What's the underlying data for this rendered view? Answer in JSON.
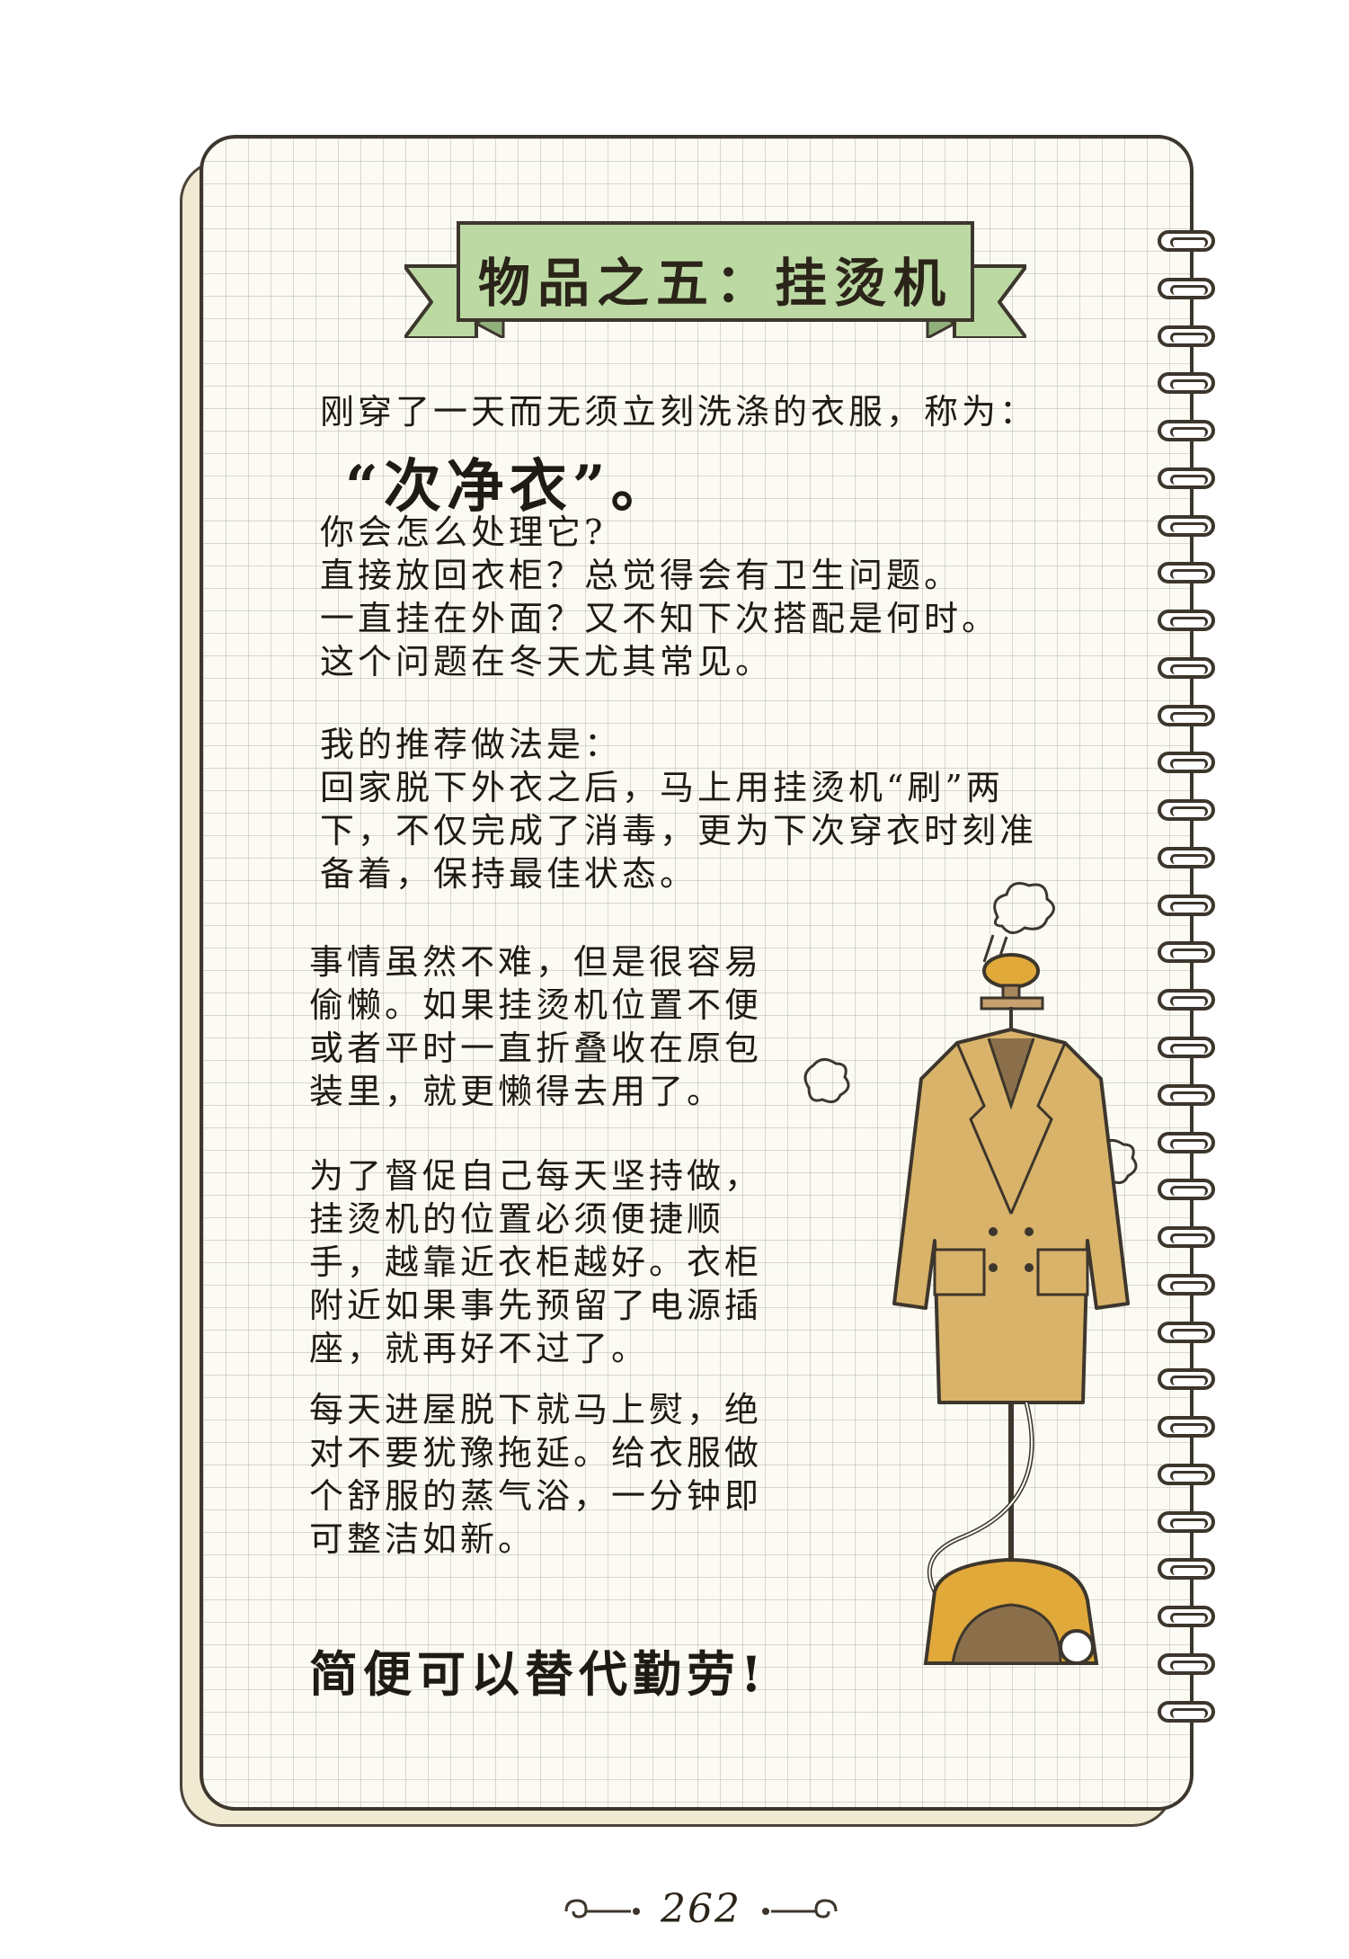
{
  "title": "物品之五：挂烫机",
  "intro": "刚穿了一天而无须立刻洗涤的衣服，称为：",
  "term": "“次净衣”。",
  "questions": "你会怎么处理它?\n直接放回衣柜？总觉得会有卫生问题。\n一直挂在外面？又不知下次搭配是何时。\n这个问题在冬天尤其常见。",
  "recommendation": "我的推荐做法是：\n回家脱下外衣之后，马上用挂烫机“刷”两\n下，不仅完成了消毒，更为下次穿衣时刻准\n备着，保持最佳状态。",
  "para_lazy": "事情虽然不难，但是很容易\n偷懒。如果挂烫机位置不便\n或者平时一直折叠收在原包\n装里，就更懒得去用了。",
  "para_position": "为了督促自己每天坚持做，\n挂烫机的位置必须便捷顺\n手，越靠近衣柜越好。衣柜\n附近如果事先预留了电源插\n座，就再好不过了。",
  "para_daily": "每天进屋脱下就马上熨，绝\n对不要犹豫拖延。给衣服做\n个舒服的蒸气浴，一分钟即\n可整洁如新。",
  "slogan": "简便可以替代勤劳!",
  "page_number": "262",
  "colors": {
    "ribbon": "#bcd9a4",
    "coat": "#d9b36a",
    "steamer_base": "#e0a93a",
    "outline": "#3d362c"
  }
}
